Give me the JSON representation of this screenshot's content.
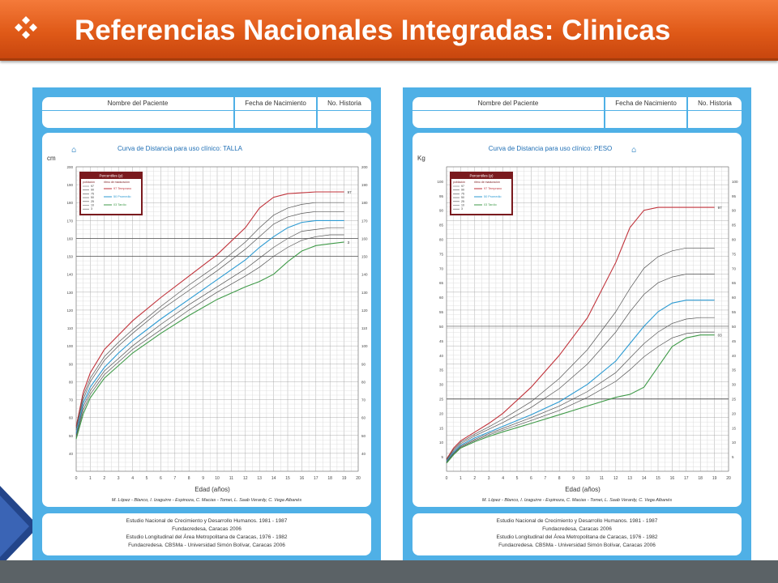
{
  "slide": {
    "title": "Referencias Nacionales Integradas: Clinicas",
    "bullet_icon": "four-diamond-bullet-icon",
    "accent_color": "#e05a18",
    "card_color": "#4fb0e6"
  },
  "cards": [
    {
      "header": [
        "Nombre del Paciente",
        "Fecha de Nacimiento",
        "No. Historia"
      ],
      "title": "Curva de Distancia para uso clínico: TALLA",
      "credits": "M. López - Blanco, I. Izaguirre - Espinoza, C. Macias - Tomei, L. Saab Verardy, C. Vega Albanés",
      "footer": [
        "Estudio Nacional de Crecimiento y Desarrollo Humanos. 1981 - 1987",
        "Fundacredesa, Caracas 2006",
        "Estudio Longitudinal del Área Metropolitana de Caracas, 1976 - 1982",
        "Fundacredesa. CBSMa - Universidad Simón Bolívar, Caracas 2006"
      ]
    },
    {
      "header": [
        "Nombre del Paciente",
        "Fecha de Nacimiento",
        "No. Historia"
      ],
      "title": "Curva de Distancia para uso clínico: PESO",
      "credits": "M. López - Blanco, I. Izaguirre - Espinoza, C. Macias - Tomei, L. Saab Verardy, C. Vega Albanés",
      "footer": [
        "Estudio Nacional de Crecimiento y Desarrollo Humanos. 1981 - 1987",
        "Fundacredesa, Caracas 2006",
        "Estudio Longitudinal del Área Metropolitana de Caracas, 1976 - 1982",
        "Fundacredesa. CBSMa - Universidad Simón Bolívar, Caracas 2006"
      ]
    }
  ],
  "chart_data": [
    {
      "type": "line",
      "title": "Curva de Distancia para uso clínico: TALLA",
      "ylabel": "cm",
      "xlabel": "Edad (años)",
      "xlim": [
        0,
        20
      ],
      "x_ticks": [
        "0",
        "1",
        "2",
        "3",
        "4",
        "5",
        "6",
        "7",
        "8",
        "9",
        "10",
        "11",
        "12",
        "13",
        "14",
        "15",
        "16",
        "17",
        "18",
        "19",
        "20"
      ],
      "ylim": [
        30,
        200
      ],
      "y_ticks": [
        "40",
        "50",
        "60",
        "70",
        "80",
        "90",
        "100",
        "110",
        "120",
        "130",
        "140",
        "150",
        "160",
        "170",
        "180",
        "190",
        "200"
      ],
      "grid": true,
      "legend": {
        "position": "top-left",
        "title": "Percentiles (p)",
        "col1": "población",
        "col2": "ritmo de maduración",
        "population_labels": [
          "97",
          "90",
          "75",
          "50",
          "25",
          "10",
          "3"
        ],
        "maturation_labels": [
          "97 Temprano",
          "50 Promedio",
          "03 Tardío"
        ]
      },
      "x": [
        0,
        0.5,
        1,
        2,
        3,
        4,
        6,
        8,
        10,
        12,
        13,
        14,
        15,
        16,
        17,
        18,
        19
      ],
      "series": [
        {
          "name": "97 Temprano",
          "color": "#c0323a",
          "values": [
            55,
            74,
            85,
            98,
            106,
            114,
            127,
            139,
            151,
            166,
            177,
            183,
            185,
            185.5,
            186,
            186,
            186
          ]
        },
        {
          "name": "97",
          "color": "#555555",
          "values": [
            54,
            72,
            82,
            94,
            102,
            109,
            122,
            134,
            145,
            158,
            166,
            173,
            177,
            179,
            180,
            180,
            180
          ]
        },
        {
          "name": "90",
          "color": "#555555",
          "values": [
            53,
            70,
            80,
            92,
            100,
            107,
            120,
            131,
            142,
            154,
            161,
            168,
            172,
            174,
            175,
            175,
            175
          ]
        },
        {
          "name": "50 Promedio",
          "color": "#2b9ad2",
          "values": [
            51,
            68,
            77,
            88,
            96,
            103,
            115,
            126,
            137,
            148,
            155,
            161,
            166,
            169,
            170,
            170,
            170
          ]
        },
        {
          "name": "25",
          "color": "#555555",
          "values": [
            50,
            66,
            75,
            86,
            93,
            100,
            112,
            123,
            133,
            143,
            149,
            155,
            160,
            164,
            165,
            166,
            166
          ]
        },
        {
          "name": "10",
          "color": "#555555",
          "values": [
            49,
            64,
            73,
            84,
            91,
            98,
            109,
            120,
            130,
            139,
            144,
            150,
            155,
            159,
            161,
            162,
            162
          ]
        },
        {
          "name": "03 Tardío",
          "color": "#3f9a48",
          "values": [
            48,
            62,
            71,
            82,
            89,
            96,
            107,
            117,
            126,
            133,
            136,
            140,
            147,
            153,
            156,
            157,
            158
          ]
        }
      ],
      "end_labels": [
        "97",
        "3"
      ]
    },
    {
      "type": "line",
      "title": "Curva de Distancia para uso clínico: PESO",
      "ylabel": "Kg",
      "xlabel": "Edad (años)",
      "xlim": [
        0,
        20
      ],
      "x_ticks": [
        "0",
        "1",
        "2",
        "3",
        "4",
        "5",
        "6",
        "7",
        "8",
        "9",
        "10",
        "11",
        "12",
        "13",
        "14",
        "15",
        "16",
        "17",
        "18",
        "19",
        "20"
      ],
      "ylim": [
        0,
        105
      ],
      "y_ticks": [
        "5",
        "10",
        "15",
        "20",
        "25",
        "30",
        "35",
        "40",
        "45",
        "50",
        "55",
        "60",
        "65",
        "70",
        "75",
        "80",
        "85",
        "90",
        "95",
        "100"
      ],
      "grid": true,
      "legend": {
        "position": "top-left",
        "title": "Percentiles (p)",
        "col1": "población",
        "col2": "ritmo de maduración",
        "population_labels": [
          "97",
          "90",
          "75",
          "50",
          "25",
          "10",
          "3"
        ],
        "maturation_labels": [
          "97 Temprano",
          "50 Promedio",
          "03 Tardío"
        ]
      },
      "x": [
        0,
        0.5,
        1,
        2,
        3,
        4,
        6,
        8,
        10,
        12,
        13,
        14,
        15,
        16,
        17,
        18,
        19
      ],
      "series": [
        {
          "name": "97 Temprano",
          "color": "#c0323a",
          "values": [
            4.2,
            8,
            10.5,
            13.5,
            16.5,
            20,
            29,
            40,
            53,
            72,
            84,
            90,
            91,
            91,
            91,
            91,
            91
          ]
        },
        {
          "name": "97",
          "color": "#555555",
          "values": [
            4,
            7.5,
            10,
            12.8,
            15.3,
            18,
            24,
            32,
            42,
            55,
            63,
            70,
            74,
            76,
            77,
            77,
            77
          ]
        },
        {
          "name": "90",
          "color": "#555555",
          "values": [
            3.8,
            7,
            9.5,
            12.2,
            14.5,
            16.8,
            22,
            28.5,
            37,
            48,
            55,
            61,
            65,
            67,
            68,
            68,
            68
          ]
        },
        {
          "name": "50 Promedio",
          "color": "#2b9ad2",
          "values": [
            3.4,
            6.5,
            9,
            11.5,
            13.5,
            15.5,
            19.5,
            24,
            30,
            38,
            44,
            50,
            55,
            58,
            59,
            59,
            59
          ]
        },
        {
          "name": "25",
          "color": "#555555",
          "values": [
            3.2,
            6.2,
            8.6,
            11,
            13,
            14.8,
            18.5,
            22.5,
            27.5,
            34,
            39,
            44,
            48,
            51,
            52.5,
            53,
            53
          ]
        },
        {
          "name": "10",
          "color": "#555555",
          "values": [
            3,
            6,
            8.3,
            10.6,
            12.5,
            14.2,
            17.5,
            21,
            25.5,
            31,
            35,
            39.5,
            43,
            46,
            47.5,
            48,
            48
          ]
        },
        {
          "name": "03 Tardío",
          "color": "#3f9a48",
          "values": [
            2.8,
            5.7,
            8,
            10.2,
            12,
            13.6,
            16.5,
            19.5,
            22.5,
            25.5,
            26.5,
            29,
            36,
            43,
            46,
            47,
            47
          ]
        }
      ],
      "end_labels": [
        "97",
        "03"
      ]
    }
  ]
}
